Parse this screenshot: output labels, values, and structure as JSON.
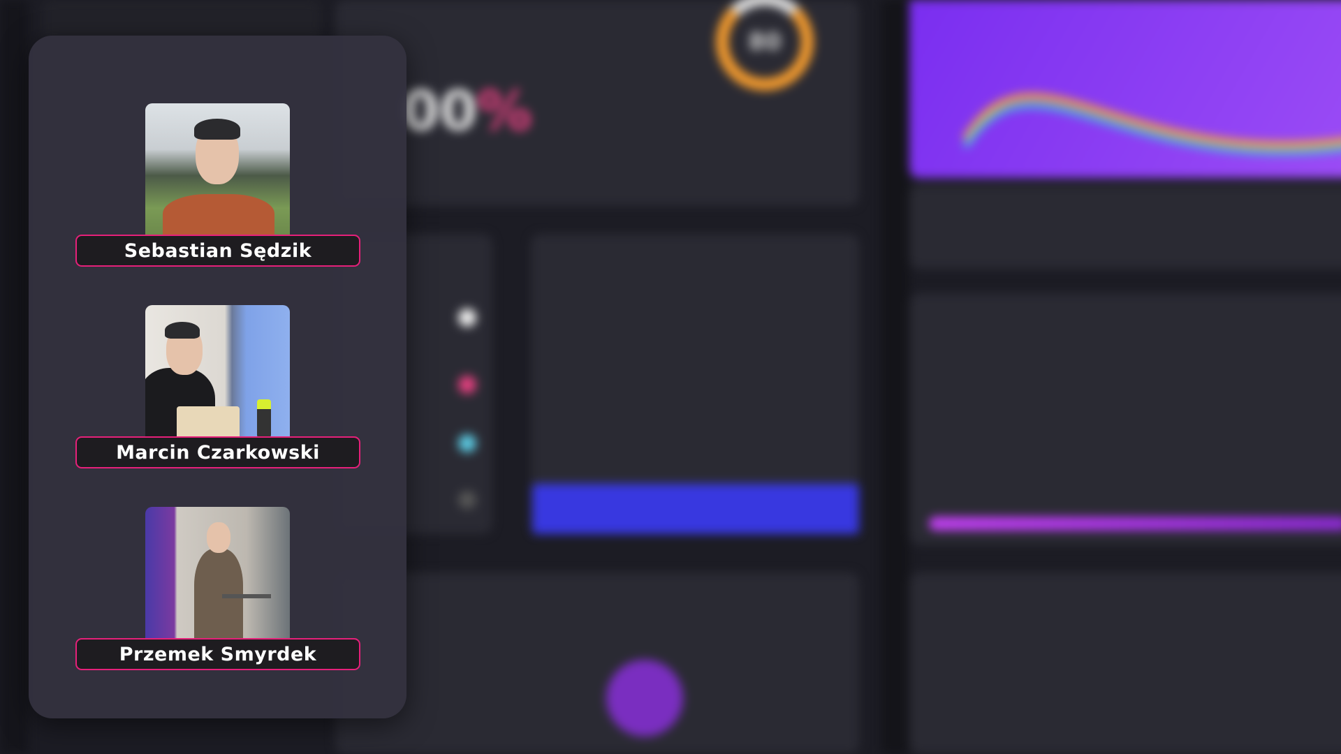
{
  "background": {
    "gauge_value": "80",
    "percent_value": "00",
    "percent_sign": "%",
    "accent_colors": {
      "orange": "#f29a2e",
      "blue": "#3838e0",
      "purple": "#8a2ad0",
      "pink": "#e6207a"
    }
  },
  "speakers": [
    {
      "name": "Sebastian Sędzik",
      "photo": "portrait-outdoor"
    },
    {
      "name": "Marcin Czarkowski",
      "photo": "presenting-at-laptop"
    },
    {
      "name": "Przemek Smyrdek",
      "photo": "presenting-standing"
    }
  ]
}
